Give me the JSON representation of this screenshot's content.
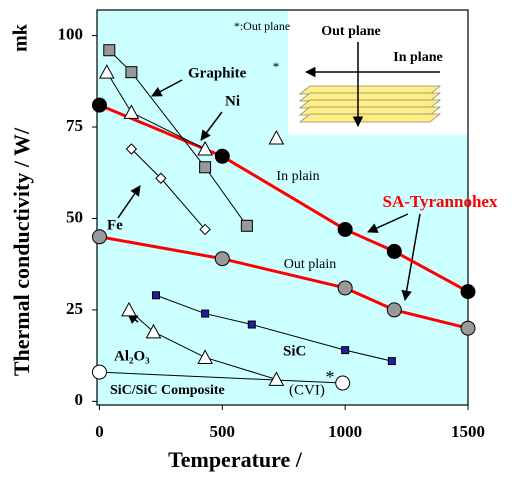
{
  "chart_data": {
    "type": "line",
    "x_label": "Temperature /",
    "y_label": "Thermal conductivity / W/",
    "y_unit": "mk",
    "xlim": [
      -10,
      1500
    ],
    "ylim": [
      -1,
      107
    ],
    "xticks": [
      0,
      500,
      1000,
      1500
    ],
    "yticks": [
      0,
      25,
      50,
      75,
      100
    ],
    "series": [
      {
        "name": "In plain",
        "color": "#000000",
        "line_color": "#ff0000",
        "marker": "circle",
        "x": [
          0,
          500,
          1000,
          1200,
          1500
        ],
        "values": [
          81,
          67,
          47,
          41,
          30
        ]
      },
      {
        "name": "Out plain",
        "color": "#999999",
        "line_color": "#ff0000",
        "marker": "circle",
        "x": [
          0,
          500,
          1000,
          1200,
          1500
        ],
        "values": [
          45,
          39,
          31,
          25,
          20
        ]
      },
      {
        "name": "Graphite",
        "color": "#999999",
        "line_color": "#000000",
        "marker": "square",
        "x": [
          40,
          130,
          430,
          600
        ],
        "values": [
          96,
          90,
          64,
          48
        ]
      },
      {
        "name": "Ni",
        "color": "#ffffff",
        "line_color": "#000000",
        "marker": "triangle",
        "x": [
          30,
          130,
          430
        ],
        "values": [
          90,
          79,
          69
        ]
      },
      {
        "name": "Fe",
        "color": "#ffffff",
        "line_color": "#000000",
        "marker": "diamond",
        "x": [
          130,
          250,
          430
        ],
        "values": [
          69,
          61,
          47
        ]
      },
      {
        "name": "SiC",
        "color": "#1f1fa0",
        "line_color": "#000000",
        "marker": "square",
        "x": [
          230,
          430,
          620,
          1000,
          1190
        ],
        "values": [
          29,
          24,
          21,
          14,
          11
        ]
      },
      {
        "name": "Al₂O₃",
        "color": "#ffffff",
        "line_color": "#000000",
        "marker": "triangle",
        "x": [
          120,
          220,
          430,
          720
        ],
        "values": [
          25,
          19,
          12,
          6
        ]
      },
      {
        "name": "SiC/SiC Composite",
        "color": "#ffffff",
        "line_color": "#000000",
        "marker": "circle",
        "x": [
          0,
          990
        ],
        "values": [
          8,
          5
        ]
      }
    ],
    "extra_points": {
      "name": "Ni",
      "marker": "triangle",
      "x": [
        720
      ],
      "values": [
        72
      ]
    },
    "annotations": [
      "*:Out plane",
      "*",
      "SA-Tyrannohex",
      "(CVI)",
      "*",
      "Out plane",
      "In plane"
    ]
  }
}
